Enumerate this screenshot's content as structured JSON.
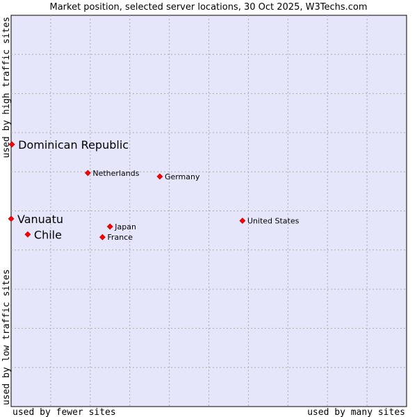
{
  "chart_data": {
    "type": "scatter",
    "title": "Market position, selected server locations, 30 Oct 2025, W3Techs.com",
    "xlabel_left": "used by fewer sites",
    "xlabel_right": "used by many sites",
    "ylabel_bottom": "used by low traffic sites",
    "ylabel_top": "used by high traffic sites",
    "xlim": [
      0,
      100
    ],
    "ylim": [
      0,
      100
    ],
    "grid": true,
    "colors": {
      "plot_bg": "#e6e6fa",
      "point": "#ff0000",
      "grid": "#aaaaaa",
      "frame": "#000000"
    },
    "points": [
      {
        "label": "Dominican Republic",
        "x": 0.2,
        "y": 67.0,
        "emphasis": true
      },
      {
        "label": "Netherlands",
        "x": 19.4,
        "y": 59.7,
        "emphasis": false
      },
      {
        "label": "Germany",
        "x": 37.6,
        "y": 58.8,
        "emphasis": false
      },
      {
        "label": "Vanuatu",
        "x": 0.0,
        "y": 48.0,
        "emphasis": true
      },
      {
        "label": "United States",
        "x": 58.5,
        "y": 47.5,
        "emphasis": false
      },
      {
        "label": "Japan",
        "x": 25.0,
        "y": 46.0,
        "emphasis": false
      },
      {
        "label": "Chile",
        "x": 4.2,
        "y": 44.0,
        "emphasis": true
      },
      {
        "label": "France",
        "x": 23.1,
        "y": 43.3,
        "emphasis": false
      }
    ]
  }
}
